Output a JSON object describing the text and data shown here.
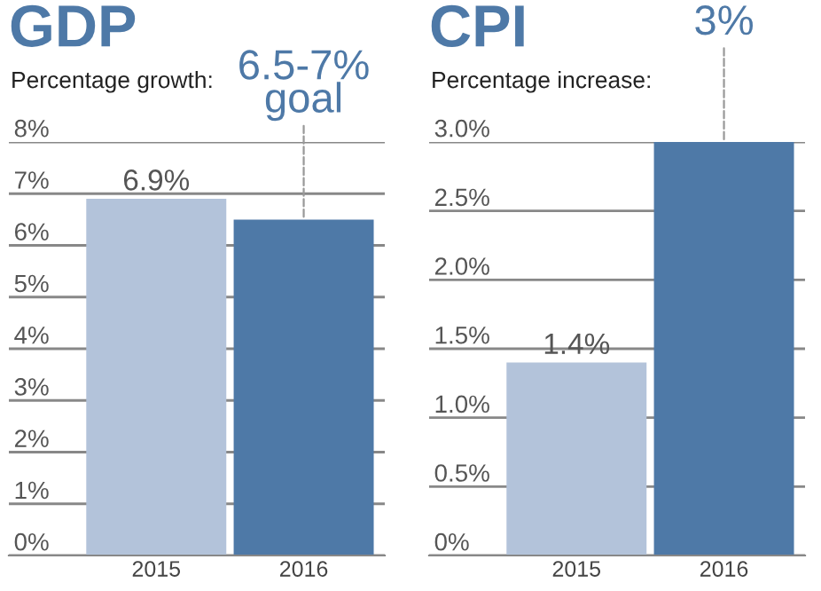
{
  "chart_data": [
    {
      "type": "bar",
      "title": "GDP",
      "subtitle": "Percentage growth:",
      "categories": [
        "2015",
        "2016"
      ],
      "values": [
        6.9,
        6.5
      ],
      "colors": [
        "#b3c3da",
        "#4e79a7"
      ],
      "value_labels": [
        "6.9%",
        "6.5-7%\ngoal"
      ],
      "ylim": [
        0,
        8
      ],
      "yticks": [
        {
          "value": 0,
          "label": "0%"
        },
        {
          "value": 1,
          "label": "1%"
        },
        {
          "value": 2,
          "label": "2%"
        },
        {
          "value": 3,
          "label": "3%"
        },
        {
          "value": 4,
          "label": "4%"
        },
        {
          "value": 5,
          "label": "5%"
        },
        {
          "value": 6,
          "label": "6%"
        },
        {
          "value": 7,
          "label": "7%"
        },
        {
          "value": 8,
          "label": "8%"
        }
      ],
      "grid": "y"
    },
    {
      "type": "bar",
      "title": "CPI",
      "subtitle": "Percentage increase:",
      "categories": [
        "2015",
        "2016"
      ],
      "values": [
        1.4,
        3
      ],
      "colors": [
        "#b3c3da",
        "#4e79a7"
      ],
      "value_labels": [
        "1.4%",
        "3%"
      ],
      "ylim": [
        0,
        3
      ],
      "yticks": [
        {
          "value": 0,
          "label": "0%"
        },
        {
          "value": 0.5,
          "label": "0.5%"
        },
        {
          "value": 1,
          "label": "1.0%"
        },
        {
          "value": 1.5,
          "label": "1.5%"
        },
        {
          "value": 2,
          "label": "2.0%"
        },
        {
          "value": 2.5,
          "label": "2.5%"
        },
        {
          "value": 3,
          "label": "3.0%"
        }
      ],
      "grid": "y"
    }
  ]
}
